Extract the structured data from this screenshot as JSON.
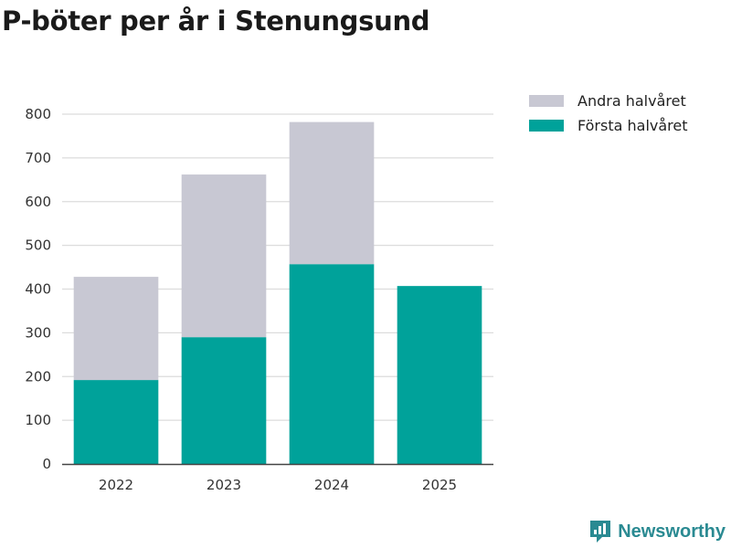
{
  "title": "P-böter per år i Stenungsund",
  "brand": {
    "name": "Newsworthy",
    "color": "#2a8a92",
    "icon": "newsworthy-logo-icon"
  },
  "chart_data": {
    "type": "bar",
    "stacked": true,
    "title": "P-böter per år i Stenungsund",
    "categories": [
      "2022",
      "2023",
      "2024",
      "2025"
    ],
    "series": [
      {
        "name": "Första halvåret",
        "color": "#00a29a",
        "values": [
          192,
          290,
          457,
          407
        ]
      },
      {
        "name": "Andra halvåret",
        "color": "#c8c8d3",
        "values": [
          236,
          372,
          325,
          0
        ]
      }
    ],
    "ylim": [
      0,
      800
    ],
    "yticks": [
      0,
      100,
      200,
      300,
      400,
      500,
      600,
      700,
      800
    ],
    "grid": true,
    "legend": {
      "position": "top-right",
      "items": [
        {
          "label": "Andra halvåret",
          "color": "#c8c8d3"
        },
        {
          "label": "Första halvåret",
          "color": "#00a29a"
        }
      ]
    },
    "xlabel": "",
    "ylabel": ""
  }
}
